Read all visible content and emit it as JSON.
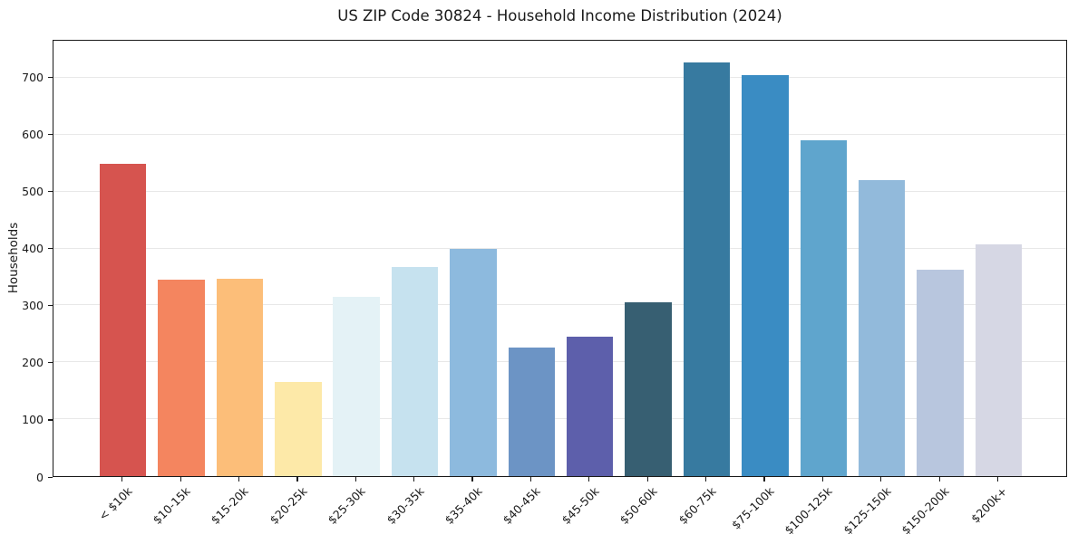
{
  "chart_data": {
    "type": "bar",
    "title": "US ZIP Code 30824 - Household Income Distribution (2024)",
    "xlabel": "",
    "ylabel": "Households",
    "categories": [
      "< $10k",
      "$10-15k",
      "$15-20k",
      "$20-25k",
      "$25-30k",
      "$30-35k",
      "$35-40k",
      "$40-45k",
      "$45-50k",
      "$50-60k",
      "$60-75k",
      "$75-100k",
      "$100-125k",
      "$125-150k",
      "$150-200k",
      "$200k+"
    ],
    "values": [
      549,
      345,
      346,
      165,
      315,
      367,
      399,
      226,
      245,
      305,
      727,
      705,
      590,
      520,
      363,
      408
    ],
    "bar_colors": [
      "#d6544f",
      "#f4855f",
      "#fcbe79",
      "#fde9a8",
      "#e4f2f6",
      "#c6e2ef",
      "#8dbade",
      "#6c94c5",
      "#5d5fab",
      "#375f72",
      "#377aa0",
      "#3a8cc3",
      "#5fa5cd",
      "#92badb",
      "#b8c6de",
      "#d6d7e4"
    ],
    "yticks": [
      0,
      100,
      200,
      300,
      400,
      500,
      600,
      700
    ],
    "ylim": [
      0,
      765
    ],
    "grid": "horizontal-only",
    "grid_color": "#e8e8e8",
    "axis_color": "#1a1a1a",
    "legend": "none",
    "x_tick_label_rotation_deg": 45
  }
}
